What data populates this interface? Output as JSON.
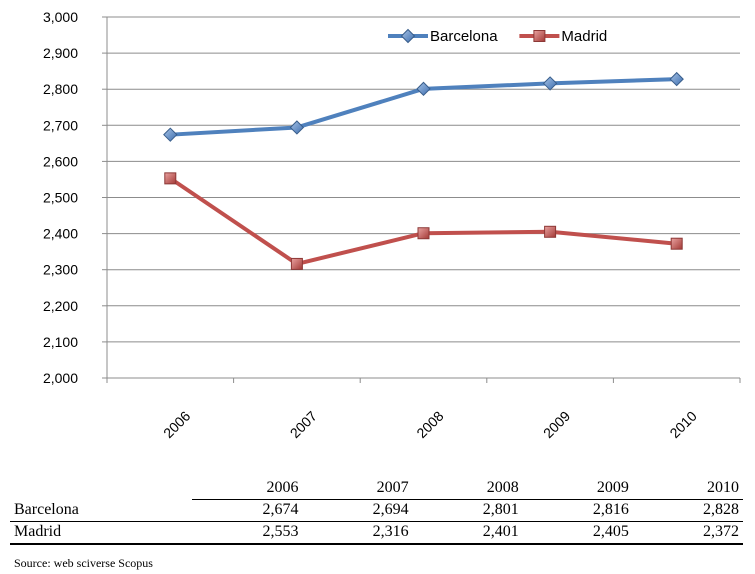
{
  "chart_data": {
    "type": "line",
    "categories": [
      "2006",
      "2007",
      "2008",
      "2009",
      "2010"
    ],
    "series": [
      {
        "name": "Barcelona",
        "values": [
          2674,
          2694,
          2801,
          2816,
          2828
        ],
        "color": "#4F81BD",
        "marker": "diamond"
      },
      {
        "name": "Madrid",
        "values": [
          2553,
          2316,
          2401,
          2405,
          2372
        ],
        "color": "#C0504D",
        "marker": "square"
      }
    ],
    "ylim": [
      2000,
      3000
    ],
    "y_ticks": [
      "2,000",
      "2,100",
      "2,200",
      "2,300",
      "2,400",
      "2,500",
      "2,600",
      "2,700",
      "2,800",
      "2,900",
      "3,000"
    ],
    "grid": true,
    "legend": "top-right"
  },
  "table": {
    "columns": [
      "2006",
      "2007",
      "2008",
      "2009",
      "2010"
    ],
    "rows": [
      {
        "label": "Barcelona",
        "cells": [
          "2,674",
          "2,694",
          "2,801",
          "2,816",
          "2,828"
        ]
      },
      {
        "label": "Madrid",
        "cells": [
          "2,553",
          "2,316",
          "2,401",
          "2,405",
          "2,372"
        ]
      }
    ]
  },
  "source": "Source: web sciverse Scopus"
}
